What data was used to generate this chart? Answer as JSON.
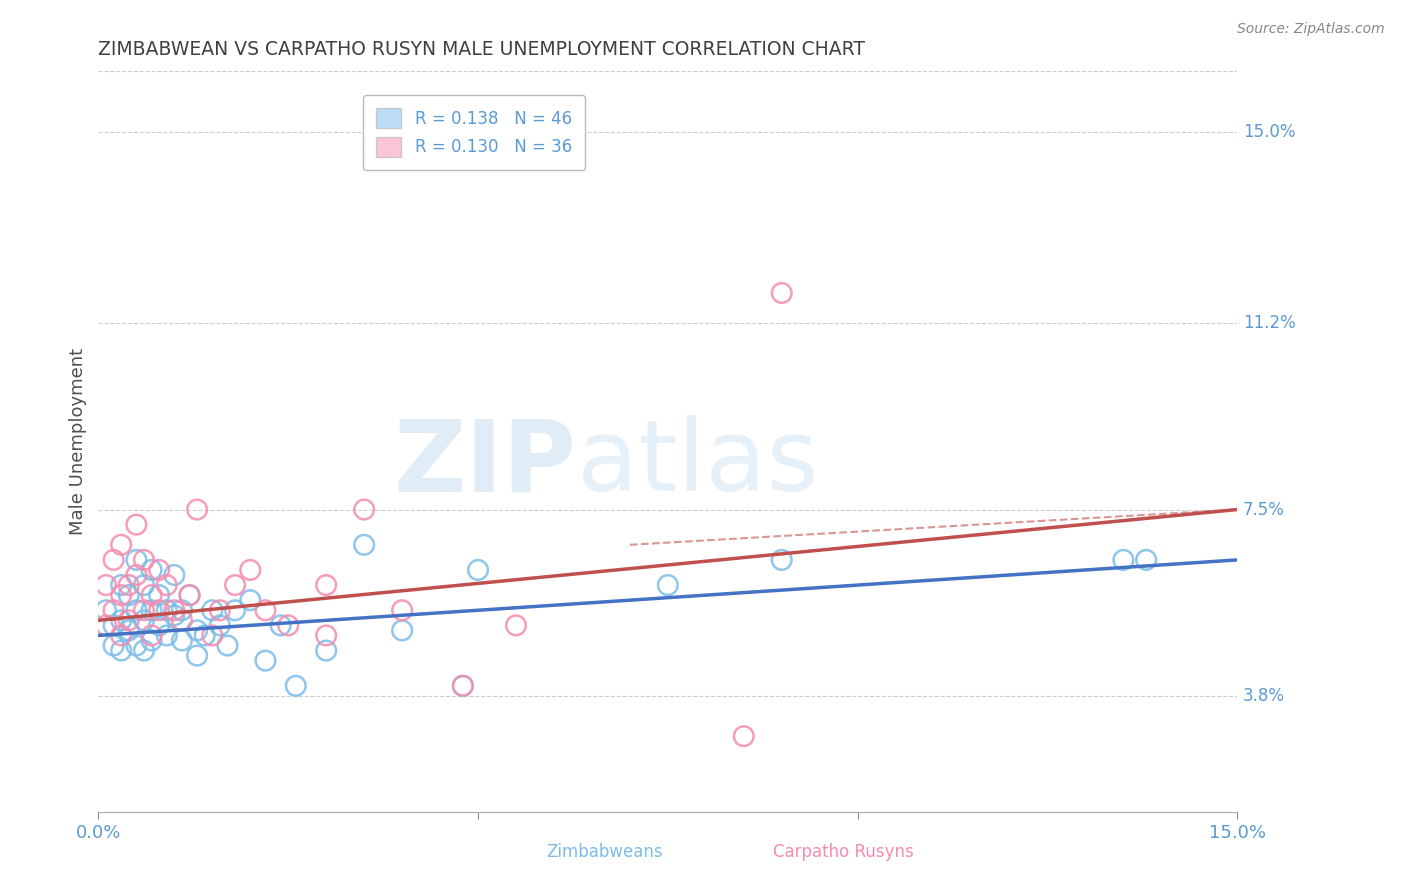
{
  "title": "ZIMBABWEAN VS CARPATHO RUSYN MALE UNEMPLOYMENT CORRELATION CHART",
  "source": "Source: ZipAtlas.com",
  "ylabel": "Male Unemployment",
  "series1_label": "Zimbabweans",
  "series2_label": "Carpatho Rusyns",
  "series1_color": "#7abde8",
  "series2_color": "#f48cb0",
  "series1_R": 0.138,
  "series1_N": 46,
  "series2_R": 0.13,
  "series2_N": 36,
  "xmin": 0.0,
  "xmax": 0.15,
  "ymin": 0.015,
  "ymax": 0.162,
  "right_yticks": [
    0.15,
    0.112,
    0.075,
    0.038
  ],
  "right_ytick_labels": [
    "15.0%",
    "11.2%",
    "7.5%",
    "3.8%"
  ],
  "background_color": "#ffffff",
  "grid_color": "#cccccc",
  "title_color": "#404040",
  "axis_label_color": "#5b9bd5",
  "trend1_color": "#4472c4",
  "trend2_color": "#c0504d",
  "series1_x": [
    0.001,
    0.002,
    0.002,
    0.003,
    0.003,
    0.003,
    0.004,
    0.004,
    0.005,
    0.005,
    0.005,
    0.006,
    0.006,
    0.006,
    0.007,
    0.007,
    0.007,
    0.008,
    0.008,
    0.009,
    0.009,
    0.01,
    0.01,
    0.011,
    0.011,
    0.012,
    0.013,
    0.013,
    0.014,
    0.015,
    0.016,
    0.017,
    0.018,
    0.02,
    0.022,
    0.024,
    0.026,
    0.03,
    0.035,
    0.04,
    0.048,
    0.05,
    0.075,
    0.09,
    0.135,
    0.138
  ],
  "series1_y": [
    0.055,
    0.048,
    0.052,
    0.06,
    0.053,
    0.047,
    0.058,
    0.051,
    0.065,
    0.055,
    0.048,
    0.06,
    0.053,
    0.047,
    0.063,
    0.055,
    0.049,
    0.058,
    0.052,
    0.055,
    0.05,
    0.062,
    0.054,
    0.055,
    0.049,
    0.058,
    0.051,
    0.046,
    0.05,
    0.055,
    0.052,
    0.048,
    0.055,
    0.057,
    0.045,
    0.052,
    0.04,
    0.047,
    0.068,
    0.051,
    0.04,
    0.063,
    0.06,
    0.065,
    0.065,
    0.065
  ],
  "series2_x": [
    0.001,
    0.001,
    0.002,
    0.002,
    0.003,
    0.003,
    0.003,
    0.004,
    0.004,
    0.005,
    0.005,
    0.006,
    0.006,
    0.007,
    0.007,
    0.008,
    0.008,
    0.009,
    0.01,
    0.011,
    0.012,
    0.013,
    0.015,
    0.016,
    0.018,
    0.02,
    0.022,
    0.025,
    0.03,
    0.03,
    0.035,
    0.04,
    0.048,
    0.055,
    0.085,
    0.09
  ],
  "series2_y": [
    0.06,
    0.052,
    0.065,
    0.055,
    0.068,
    0.058,
    0.05,
    0.06,
    0.053,
    0.072,
    0.062,
    0.065,
    0.055,
    0.058,
    0.05,
    0.063,
    0.055,
    0.06,
    0.055,
    0.053,
    0.058,
    0.075,
    0.05,
    0.055,
    0.06,
    0.063,
    0.055,
    0.052,
    0.05,
    0.06,
    0.075,
    0.055,
    0.04,
    0.052,
    0.03,
    0.118
  ],
  "trend1_x_start": 0.0,
  "trend1_x_end": 0.15,
  "trend1_y_start": 0.05,
  "trend1_y_end": 0.065,
  "trend2_x_start": 0.0,
  "trend2_x_end": 0.15,
  "trend2_y_start": 0.053,
  "trend2_y_end": 0.075
}
